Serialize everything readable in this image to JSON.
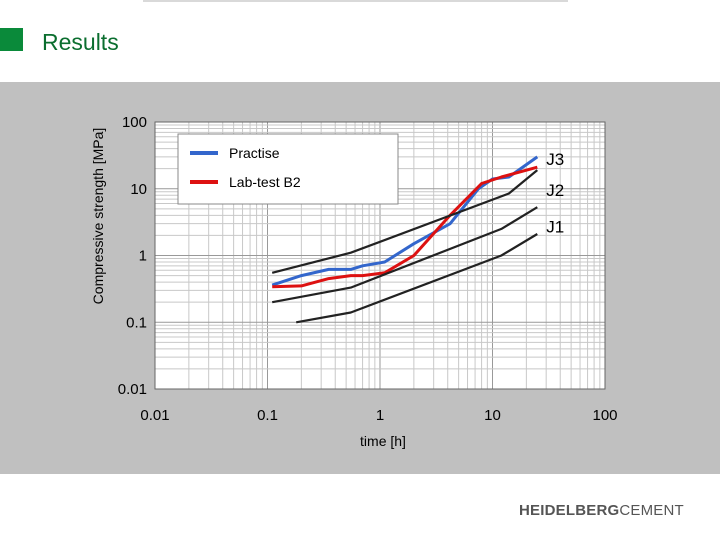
{
  "slide": {
    "title": "Results"
  },
  "logo": {
    "part1": "HEIDELBERG",
    "part2": "CEMENT"
  },
  "colors": {
    "brand_green": "#0a8a3a",
    "title_green": "#0b6e2f",
    "panel": "#c0c0c0",
    "practise": "#3366cc",
    "lab_test": "#dd1111",
    "reference": "#222222"
  },
  "chart_data": {
    "type": "line",
    "scale": "log-log",
    "xlabel": "time [h]",
    "ylabel": "Compressive strength [MPa]",
    "xlim": [
      0.01,
      100
    ],
    "ylim": [
      0.01,
      100
    ],
    "xticks": [
      "0.01",
      "0.1",
      "1",
      "10",
      "100"
    ],
    "yticks": [
      "0.01",
      "0.1",
      "1",
      "10",
      "100"
    ],
    "grid": true,
    "legend_position": "top-left",
    "series": [
      {
        "name": "Practise",
        "color": "#3366cc",
        "in_legend": true,
        "points": [
          [
            0.11,
            0.36
          ],
          [
            0.2,
            0.5
          ],
          [
            0.35,
            0.62
          ],
          [
            0.55,
            0.62
          ],
          [
            0.7,
            0.7
          ],
          [
            1.1,
            0.8
          ],
          [
            2.0,
            1.5
          ],
          [
            4.2,
            3.0
          ],
          [
            7.5,
            10
          ],
          [
            10,
            14
          ],
          [
            14,
            15
          ],
          [
            25,
            30
          ]
        ]
      },
      {
        "name": "Lab-test B2",
        "color": "#dd1111",
        "in_legend": true,
        "points": [
          [
            0.11,
            0.34
          ],
          [
            0.2,
            0.35
          ],
          [
            0.35,
            0.45
          ],
          [
            0.55,
            0.5
          ],
          [
            0.7,
            0.5
          ],
          [
            1.1,
            0.55
          ],
          [
            2.0,
            1.0
          ],
          [
            4.2,
            4.0
          ],
          [
            8.0,
            12
          ],
          [
            12,
            15
          ],
          [
            25,
            21
          ]
        ]
      },
      {
        "name": "J3",
        "color": "#222222",
        "in_legend": false,
        "points": [
          [
            0.11,
            0.55
          ],
          [
            0.55,
            1.1
          ],
          [
            14,
            8.5
          ],
          [
            25,
            19
          ]
        ]
      },
      {
        "name": "J2",
        "color": "#222222",
        "in_legend": false,
        "points": [
          [
            0.11,
            0.2
          ],
          [
            0.55,
            0.33
          ],
          [
            12,
            2.5
          ],
          [
            25,
            5.3
          ]
        ]
      },
      {
        "name": "J1",
        "color": "#222222",
        "in_legend": false,
        "points": [
          [
            0.18,
            0.1
          ],
          [
            0.55,
            0.14
          ],
          [
            12,
            1.0
          ],
          [
            25,
            2.1
          ]
        ]
      }
    ],
    "curve_labels": [
      {
        "text": "J3",
        "x": 34,
        "y": 28
      },
      {
        "text": "J2",
        "x": 34,
        "y": 9.5
      },
      {
        "text": "J1",
        "x": 34,
        "y": 2.7
      }
    ]
  }
}
